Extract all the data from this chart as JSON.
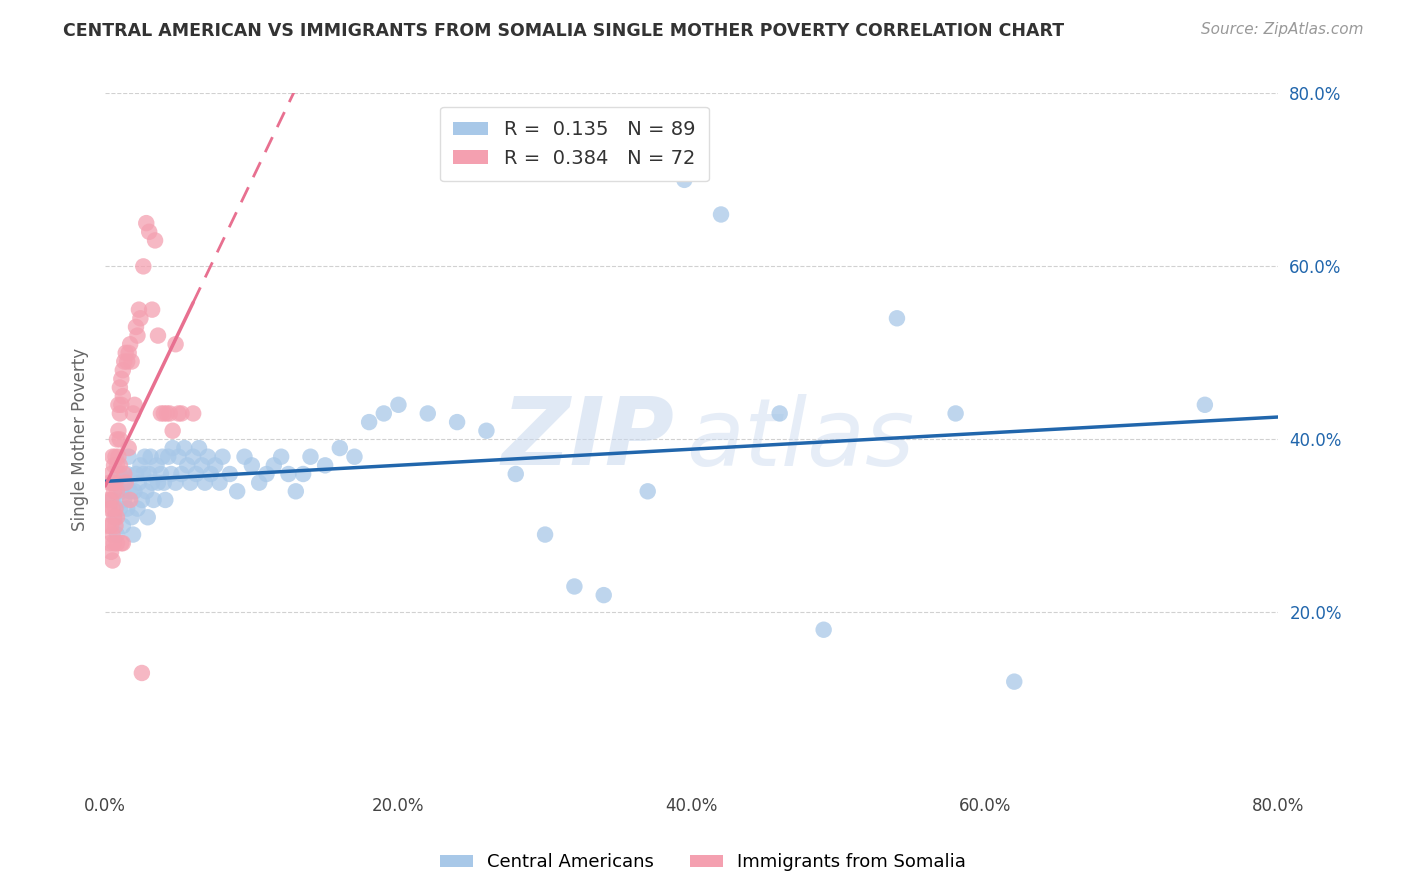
{
  "title": "CENTRAL AMERICAN VS IMMIGRANTS FROM SOMALIA SINGLE MOTHER POVERTY CORRELATION CHART",
  "source": "Source: ZipAtlas.com",
  "ylabel": "Single Mother Poverty",
  "xlim": [
    0.0,
    0.8
  ],
  "ylim": [
    0.0,
    0.8
  ],
  "xtick_labels": [
    "0.0%",
    "",
    "20.0%",
    "",
    "40.0%",
    "",
    "60.0%",
    "",
    "80.0%"
  ],
  "xtick_positions": [
    0.0,
    0.1,
    0.2,
    0.3,
    0.4,
    0.5,
    0.6,
    0.7,
    0.8
  ],
  "ytick_labels": [
    "20.0%",
    "40.0%",
    "60.0%",
    "80.0%"
  ],
  "ytick_positions": [
    0.2,
    0.4,
    0.6,
    0.8
  ],
  "blue_color": "#a8c8e8",
  "pink_color": "#f4a0b0",
  "blue_line_color": "#2166ac",
  "pink_line_color": "#e87090",
  "r_blue": 0.135,
  "n_blue": 89,
  "r_pink": 0.384,
  "n_pink": 72,
  "watermark_zip": "ZIP",
  "watermark_atlas": "atlas",
  "legend_label_blue": "Central Americans",
  "legend_label_pink": "Immigrants from Somalia",
  "blue_x": [
    0.005,
    0.005,
    0.007,
    0.008,
    0.01,
    0.01,
    0.011,
    0.012,
    0.013,
    0.013,
    0.015,
    0.015,
    0.016,
    0.017,
    0.018,
    0.019,
    0.02,
    0.021,
    0.022,
    0.023,
    0.024,
    0.025,
    0.026,
    0.027,
    0.028,
    0.029,
    0.03,
    0.031,
    0.032,
    0.033,
    0.035,
    0.036,
    0.038,
    0.039,
    0.04,
    0.041,
    0.043,
    0.045,
    0.046,
    0.048,
    0.05,
    0.052,
    0.054,
    0.056,
    0.058,
    0.06,
    0.062,
    0.064,
    0.066,
    0.068,
    0.07,
    0.072,
    0.075,
    0.078,
    0.08,
    0.085,
    0.09,
    0.095,
    0.1,
    0.105,
    0.11,
    0.115,
    0.12,
    0.125,
    0.13,
    0.135,
    0.14,
    0.15,
    0.16,
    0.17,
    0.18,
    0.19,
    0.2,
    0.22,
    0.24,
    0.26,
    0.28,
    0.3,
    0.32,
    0.34,
    0.37,
    0.395,
    0.42,
    0.46,
    0.49,
    0.54,
    0.58,
    0.62,
    0.75
  ],
  "blue_y": [
    0.33,
    0.35,
    0.31,
    0.29,
    0.36,
    0.32,
    0.34,
    0.3,
    0.33,
    0.35,
    0.36,
    0.32,
    0.38,
    0.34,
    0.31,
    0.29,
    0.34,
    0.36,
    0.32,
    0.35,
    0.37,
    0.33,
    0.36,
    0.38,
    0.34,
    0.31,
    0.36,
    0.38,
    0.35,
    0.33,
    0.37,
    0.35,
    0.36,
    0.38,
    0.35,
    0.33,
    0.38,
    0.36,
    0.39,
    0.35,
    0.38,
    0.36,
    0.39,
    0.37,
    0.35,
    0.38,
    0.36,
    0.39,
    0.37,
    0.35,
    0.38,
    0.36,
    0.37,
    0.35,
    0.38,
    0.36,
    0.34,
    0.38,
    0.37,
    0.35,
    0.36,
    0.37,
    0.38,
    0.36,
    0.34,
    0.36,
    0.38,
    0.37,
    0.39,
    0.38,
    0.42,
    0.43,
    0.44,
    0.43,
    0.42,
    0.41,
    0.36,
    0.29,
    0.23,
    0.22,
    0.34,
    0.7,
    0.66,
    0.43,
    0.18,
    0.54,
    0.43,
    0.12,
    0.44
  ],
  "pink_x": [
    0.002,
    0.002,
    0.003,
    0.003,
    0.003,
    0.004,
    0.004,
    0.004,
    0.004,
    0.005,
    0.005,
    0.005,
    0.005,
    0.005,
    0.006,
    0.006,
    0.006,
    0.006,
    0.007,
    0.007,
    0.007,
    0.007,
    0.008,
    0.008,
    0.008,
    0.008,
    0.008,
    0.009,
    0.009,
    0.009,
    0.01,
    0.01,
    0.01,
    0.01,
    0.011,
    0.011,
    0.011,
    0.012,
    0.012,
    0.012,
    0.013,
    0.013,
    0.014,
    0.014,
    0.015,
    0.016,
    0.016,
    0.017,
    0.017,
    0.018,
    0.019,
    0.02,
    0.021,
    0.022,
    0.023,
    0.024,
    0.025,
    0.026,
    0.028,
    0.03,
    0.032,
    0.034,
    0.036,
    0.038,
    0.04,
    0.042,
    0.044,
    0.046,
    0.048,
    0.05,
    0.052,
    0.06
  ],
  "pink_y": [
    0.33,
    0.3,
    0.35,
    0.32,
    0.28,
    0.36,
    0.33,
    0.3,
    0.27,
    0.38,
    0.35,
    0.32,
    0.29,
    0.26,
    0.37,
    0.34,
    0.31,
    0.28,
    0.38,
    0.35,
    0.32,
    0.3,
    0.4,
    0.37,
    0.34,
    0.31,
    0.28,
    0.44,
    0.41,
    0.38,
    0.46,
    0.43,
    0.4,
    0.37,
    0.47,
    0.44,
    0.28,
    0.48,
    0.45,
    0.28,
    0.49,
    0.36,
    0.5,
    0.35,
    0.49,
    0.5,
    0.39,
    0.51,
    0.33,
    0.49,
    0.43,
    0.44,
    0.53,
    0.52,
    0.55,
    0.54,
    0.13,
    0.6,
    0.65,
    0.64,
    0.55,
    0.63,
    0.52,
    0.43,
    0.43,
    0.43,
    0.43,
    0.41,
    0.51,
    0.43,
    0.43,
    0.43
  ]
}
